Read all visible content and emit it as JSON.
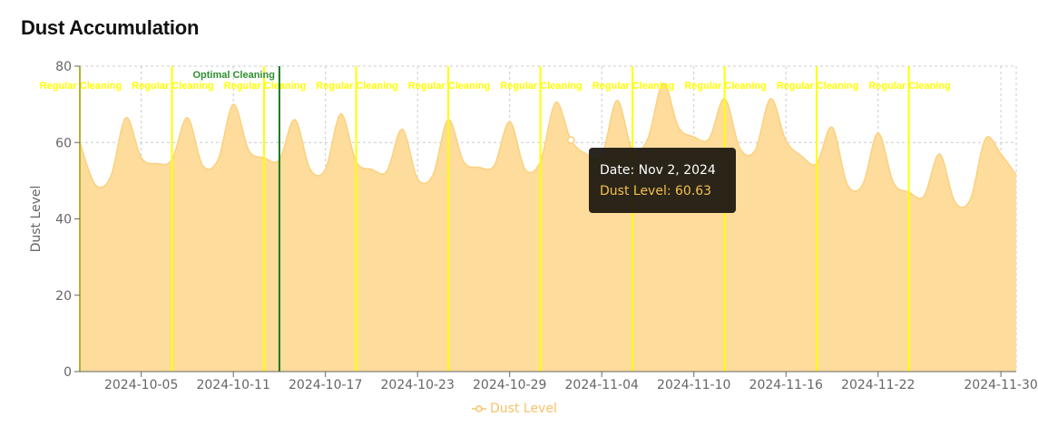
{
  "title": "Dust Accumulation",
  "colors": {
    "area": "#fddc9c",
    "line": "#fcd17e",
    "regular": "#ffff00",
    "optimal": "#1a7a1a",
    "optimal_text": "#2f8f2f",
    "grid": "#cccccc"
  },
  "tooltip": {
    "date": "Date: Nov 2, 2024",
    "value": "Dust Level: 60.63"
  },
  "legend": {
    "label": "Dust Level",
    "icon": "line-circle-icon"
  },
  "chart_data": {
    "type": "area",
    "title": "Dust Accumulation",
    "ylabel": "Dust Level",
    "xlabel": "",
    "ylim": [
      0,
      80
    ],
    "yticks": [
      0,
      20,
      40,
      60,
      80
    ],
    "xlim": [
      "2024-10-01",
      "2024-12-01"
    ],
    "xticks": [
      "2024-10-05",
      "2024-10-11",
      "2024-10-17",
      "2024-10-23",
      "2024-10-29",
      "2024-11-04",
      "2024-11-10",
      "2024-11-16",
      "2024-11-22",
      "2024-11-30"
    ],
    "grid": true,
    "legend_position": "bottom",
    "series": [
      {
        "name": "Dust Level",
        "points": [
          [
            "2024-10-01",
            60
          ],
          [
            "2024-10-02",
            49
          ],
          [
            "2024-10-03",
            51
          ],
          [
            "2024-10-04",
            66.5
          ],
          [
            "2024-10-05",
            56
          ],
          [
            "2024-10-06",
            54.5
          ],
          [
            "2024-10-07",
            55.5
          ],
          [
            "2024-10-08",
            66.5
          ],
          [
            "2024-10-09",
            54
          ],
          [
            "2024-10-10",
            55.5
          ],
          [
            "2024-10-11",
            70
          ],
          [
            "2024-10-12",
            58
          ],
          [
            "2024-10-13",
            56
          ],
          [
            "2024-10-14",
            55.5
          ],
          [
            "2024-10-15",
            66
          ],
          [
            "2024-10-16",
            53
          ],
          [
            "2024-10-17",
            53
          ],
          [
            "2024-10-18",
            67.5
          ],
          [
            "2024-10-19",
            55
          ],
          [
            "2024-10-20",
            53
          ],
          [
            "2024-10-21",
            52.5
          ],
          [
            "2024-10-22",
            63.5
          ],
          [
            "2024-10-23",
            50.5
          ],
          [
            "2024-10-24",
            51.5
          ],
          [
            "2024-10-25",
            66
          ],
          [
            "2024-10-26",
            55
          ],
          [
            "2024-10-27",
            53.5
          ],
          [
            "2024-10-28",
            54
          ],
          [
            "2024-10-29",
            65.5
          ],
          [
            "2024-10-30",
            53
          ],
          [
            "2024-10-31",
            55
          ],
          [
            "2024-11-01",
            70.5
          ],
          [
            "2024-11-02",
            60.63
          ],
          [
            "2024-11-03",
            57
          ],
          [
            "2024-11-04",
            56.5
          ],
          [
            "2024-11-05",
            71
          ],
          [
            "2024-11-06",
            58
          ],
          [
            "2024-11-07",
            61
          ],
          [
            "2024-11-08",
            75.5
          ],
          [
            "2024-11-09",
            64
          ],
          [
            "2024-11-10",
            61.5
          ],
          [
            "2024-11-11",
            61
          ],
          [
            "2024-11-12",
            71.5
          ],
          [
            "2024-11-13",
            58.5
          ],
          [
            "2024-11-14",
            58
          ],
          [
            "2024-11-15",
            71.5
          ],
          [
            "2024-11-16",
            60.5
          ],
          [
            "2024-11-17",
            56.5
          ],
          [
            "2024-11-18",
            54.5
          ],
          [
            "2024-11-19",
            64
          ],
          [
            "2024-11-20",
            49
          ],
          [
            "2024-11-21",
            49
          ],
          [
            "2024-11-22",
            62.5
          ],
          [
            "2024-11-23",
            49.5
          ],
          [
            "2024-11-24",
            47
          ],
          [
            "2024-11-25",
            46
          ],
          [
            "2024-11-26",
            57
          ],
          [
            "2024-11-27",
            44.5
          ],
          [
            "2024-11-28",
            45
          ],
          [
            "2024-11-29",
            61
          ],
          [
            "2024-11-30",
            57
          ],
          [
            "2024-12-01",
            51.5
          ]
        ]
      }
    ],
    "reference_lines": [
      {
        "date": "2024-10-01",
        "label": "Regular Cleaning",
        "kind": "regular"
      },
      {
        "date": "2024-10-07",
        "label": "Regular Cleaning",
        "kind": "regular"
      },
      {
        "date": "2024-10-13",
        "label": "Regular Cleaning",
        "kind": "regular"
      },
      {
        "date": "2024-10-19",
        "label": "Regular Cleaning",
        "kind": "regular"
      },
      {
        "date": "2024-10-25",
        "label": "Regular Cleaning",
        "kind": "regular"
      },
      {
        "date": "2024-10-31",
        "label": "Regular Cleaning",
        "kind": "regular"
      },
      {
        "date": "2024-11-06",
        "label": "Regular Cleaning",
        "kind": "regular"
      },
      {
        "date": "2024-11-12",
        "label": "Regular Cleaning",
        "kind": "regular"
      },
      {
        "date": "2024-11-18",
        "label": "Regular Cleaning",
        "kind": "regular"
      },
      {
        "date": "2024-11-24",
        "label": "Regular Cleaning",
        "kind": "regular"
      },
      {
        "date": "2024-10-14",
        "label": "Optimal Cleaning",
        "kind": "optimal"
      }
    ],
    "active_point": {
      "date": "2024-11-02",
      "value": 60.63
    }
  }
}
